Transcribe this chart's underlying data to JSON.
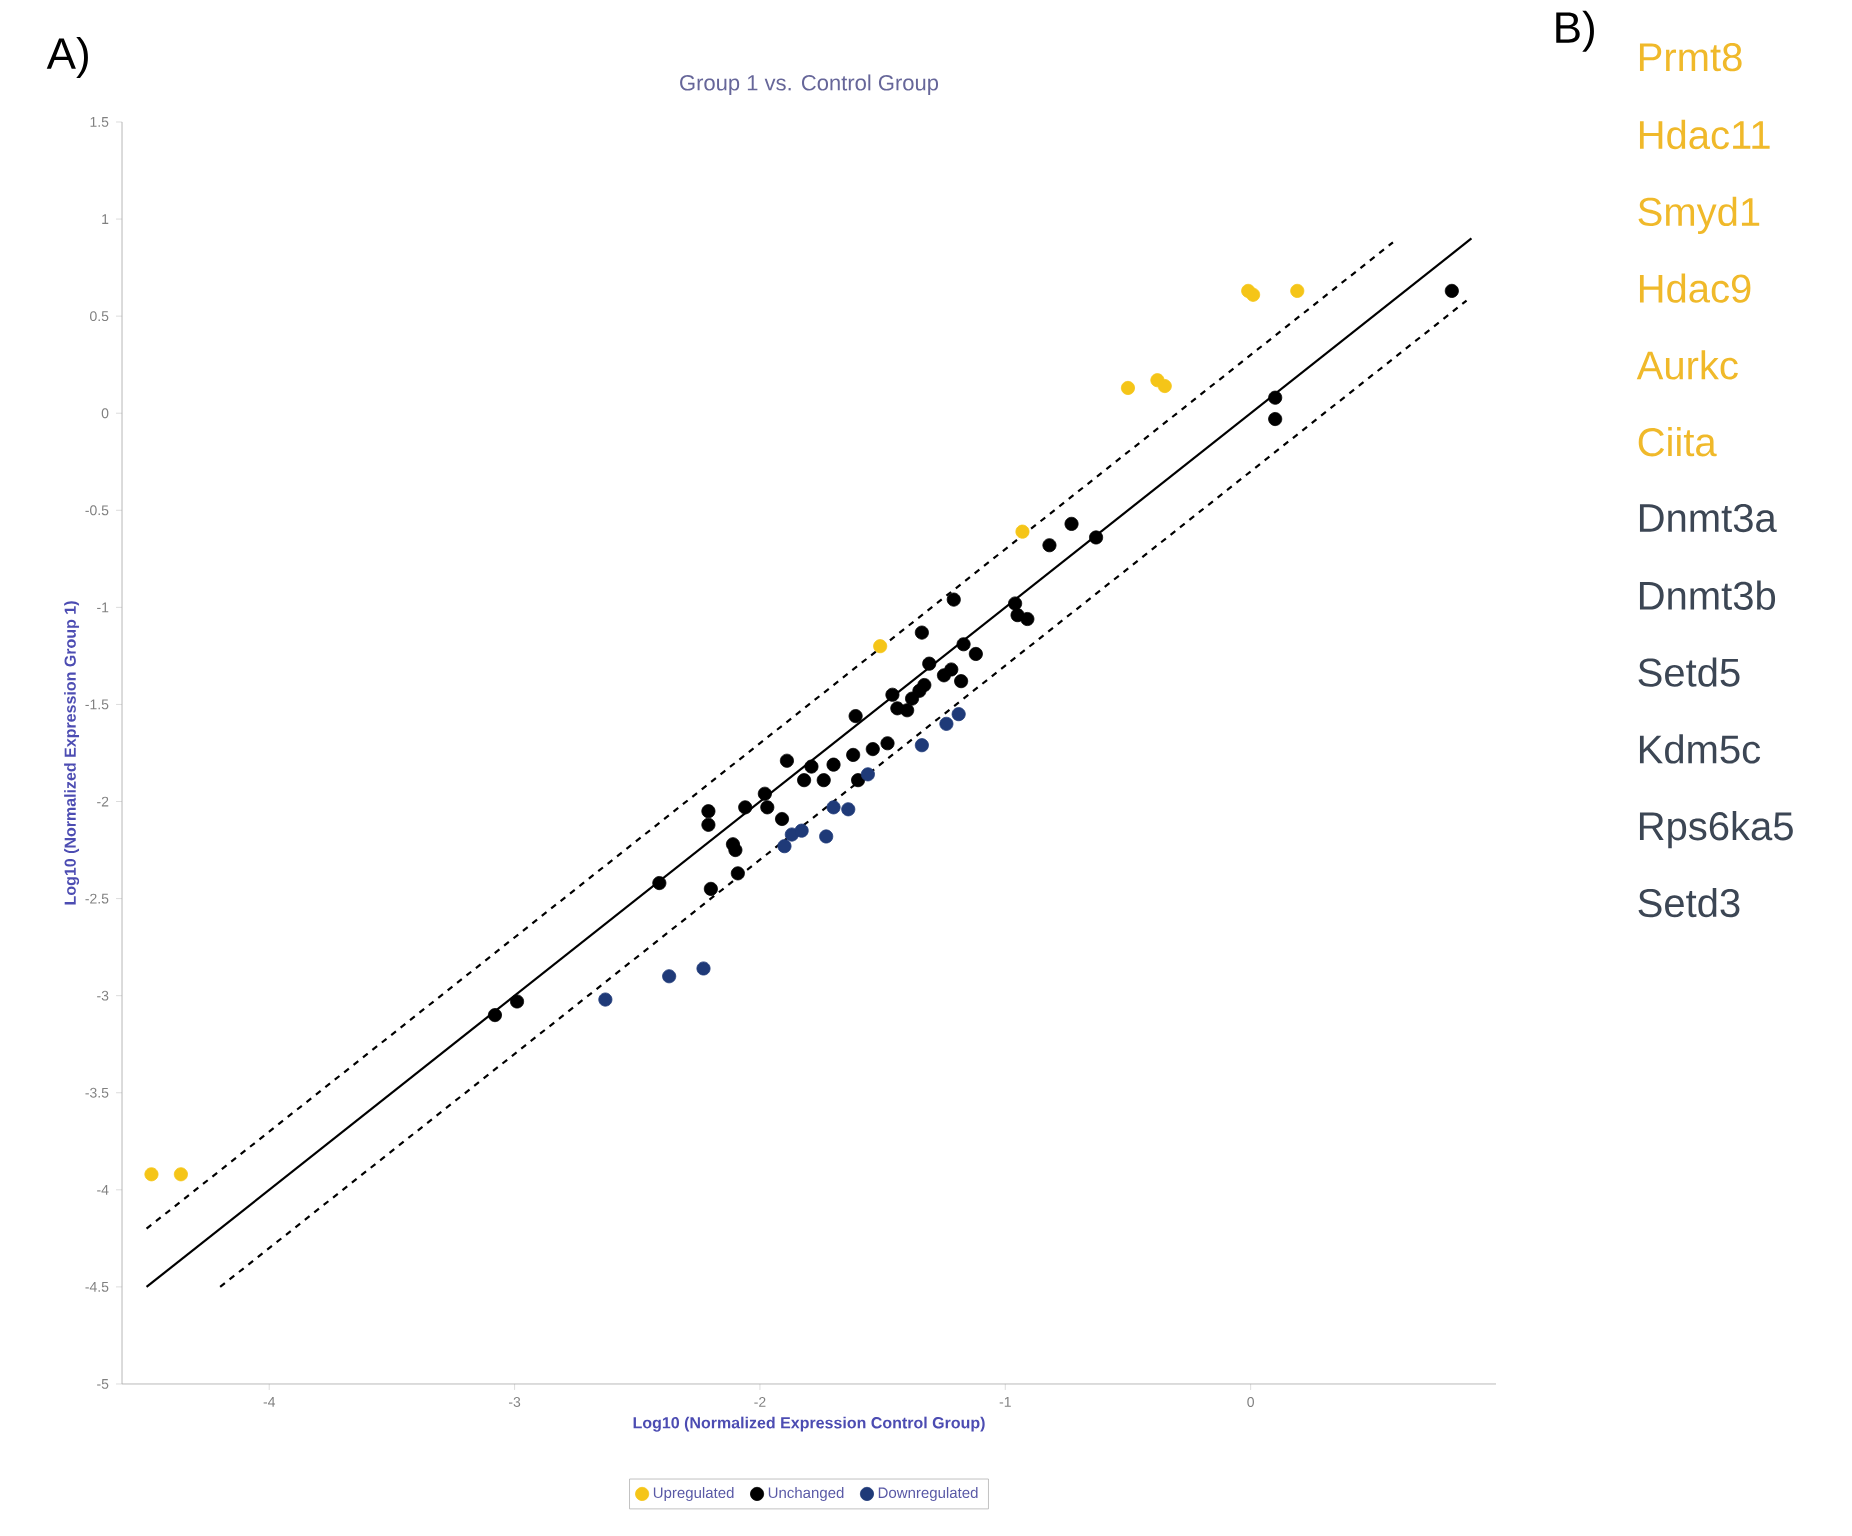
{
  "chart_data": [
    {
      "type": "scatter",
      "title": "Group 1 vs. Control Group",
      "xlabel": "Log10 (Normalized Expression Control Group)",
      "ylabel": "Log10 (Normalized Expression Group 1)",
      "annotations": [
        "A)"
      ],
      "xlim": [
        -4.6,
        1.0
      ],
      "ylim": [
        -5,
        1.5
      ],
      "xticks": [
        -4,
        -3,
        -2,
        -1,
        0
      ],
      "yticks": [
        -5,
        -4.5,
        -4,
        -3.5,
        -3,
        -2.5,
        -2,
        -1.5,
        -1,
        -0.5,
        0,
        0.5,
        1,
        1.5
      ],
      "grid": false,
      "legend": "bottom",
      "series": [
        {
          "name": "Upregulated",
          "marker": "circle",
          "color": "#f5c518",
          "x": [
            -4.48,
            -4.36,
            -1.51,
            -0.93,
            -0.5,
            -0.38,
            -0.35,
            -0.01,
            0.01,
            0.19
          ],
          "values": [
            -3.92,
            -3.92,
            -1.2,
            -0.61,
            0.13,
            0.17,
            0.14,
            0.63,
            0.61,
            0.63
          ]
        },
        {
          "name": "Unchanged",
          "marker": "circle",
          "color": "#000000",
          "x": [
            0.82,
            0.1,
            0.1,
            -0.63,
            -0.73,
            -0.82,
            -0.96,
            -0.95,
            -0.91,
            -1.21,
            -1.34,
            -1.17,
            -1.12,
            -1.31,
            -1.22,
            -1.18,
            -1.25,
            -1.46,
            -1.42,
            -1.38,
            -1.35,
            -1.44,
            -1.4,
            -1.33,
            -1.61,
            -1.89,
            -1.79,
            -1.7,
            -1.62,
            -1.54,
            -1.48,
            -1.82,
            -1.74,
            -1.98,
            -2.06,
            -1.97,
            -2.21,
            -2.21,
            -2.11,
            -2.1,
            -2.09,
            -2.2,
            -2.41,
            -1.91,
            -1.6,
            -3.08,
            -2.99
          ],
          "values": [
            0.63,
            0.08,
            -0.03,
            -0.64,
            -0.57,
            -0.68,
            -0.98,
            -1.04,
            -1.06,
            -0.96,
            -1.13,
            -1.19,
            -1.24,
            -1.29,
            -1.32,
            -1.38,
            -1.35,
            -1.45,
            null,
            -1.47,
            -1.43,
            -1.52,
            -1.53,
            -1.4,
            -1.56,
            -1.79,
            -1.82,
            -1.81,
            -1.76,
            -1.73,
            -1.7,
            -1.89,
            -1.89,
            -1.96,
            -2.03,
            -2.03,
            -2.05,
            -2.12,
            -2.22,
            -2.25,
            -2.37,
            -2.45,
            -2.42,
            -2.09,
            -1.89,
            -3.1,
            -3.03
          ]
        },
        {
          "name": "Downregulated",
          "marker": "circle",
          "color": "#1f3a78",
          "x": [
            -2.63,
            -2.37,
            -2.23,
            -1.9,
            -1.87,
            -1.83,
            -1.73,
            -1.7,
            -1.64,
            -1.56,
            -1.34,
            -1.24,
            -1.19
          ],
          "values": [
            -3.02,
            -2.9,
            -2.86,
            -2.23,
            -2.17,
            -2.15,
            -2.18,
            -2.03,
            -2.04,
            -1.86,
            -1.71,
            -1.6,
            -1.55
          ]
        },
        {
          "type": "line",
          "marker": "none",
          "color": "#000000",
          "line_style": "solid",
          "x": [
            -4.5,
            0.9
          ],
          "values": [
            -4.5,
            0.9
          ]
        },
        {
          "type": "line",
          "marker": "none",
          "color": "#000000",
          "line_style": "dashed",
          "x": [
            -4.5,
            0.58
          ],
          "values": [
            -4.2,
            0.88
          ]
        },
        {
          "type": "line",
          "marker": "none",
          "color": "#000000",
          "line_style": "dashed",
          "x": [
            -4.2,
            0.88
          ],
          "values": [
            -4.5,
            0.58
          ]
        }
      ]
    },
    {
      "type": "other",
      "title": "B)",
      "annotations": [
        "Prmt8",
        "Hdac11",
        "Smyd1",
        "Hdac9",
        "Aurkc",
        "Ciita",
        "Dnmt3a",
        "Dnmt3b",
        "Setd5",
        "Kdm5c",
        "Rps6ka5",
        "Setd3"
      ],
      "colors": [
        "#f0b92a",
        "#f0b92a",
        "#f0b92a",
        "#f0b92a",
        "#f0b92a",
        "#f0b92a",
        "#3c4654",
        "#3c4654",
        "#3c4654",
        "#3c4654",
        "#3c4654",
        "#3c4654"
      ]
    }
  ]
}
